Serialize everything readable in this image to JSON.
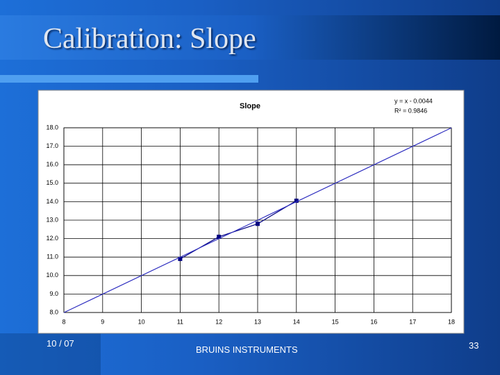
{
  "slide": {
    "title": "Calibration: Slope",
    "footer_left": "10 / 07",
    "footer_center": "BRUINS INSTRUMENTS",
    "page_number": "33"
  },
  "chart_data": {
    "type": "line",
    "title": "Slope",
    "annotations": [
      "y = x - 0.0044",
      "R² = 0.9846"
    ],
    "series": [
      {
        "x": [
          11,
          12,
          13,
          14
        ],
        "values": [
          10.9,
          12.1,
          12.8,
          14.05
        ],
        "color": "#000080",
        "marker": "square"
      },
      {
        "x": [
          8,
          18
        ],
        "values": [
          7.9956,
          17.9956
        ],
        "color": "#3030c0"
      }
    ],
    "xlim": [
      8,
      18
    ],
    "xticks": [
      8,
      9,
      10,
      11,
      12,
      13,
      14,
      15,
      16,
      17,
      18
    ],
    "ylim": [
      8,
      18
    ],
    "yticks": [
      {
        "value": 8,
        "label": "8.0"
      },
      {
        "value": 9,
        "label": "9.0"
      },
      {
        "value": 10,
        "label": "10.0"
      },
      {
        "value": 11,
        "label": "11.0"
      },
      {
        "value": 12,
        "label": "12.0"
      },
      {
        "value": 13,
        "label": "13.0"
      },
      {
        "value": 14,
        "label": "14.0"
      },
      {
        "value": 15,
        "label": "15.0"
      },
      {
        "value": 16,
        "label": "16.0"
      },
      {
        "value": 17,
        "label": "17.0"
      },
      {
        "value": 18,
        "label": "18.0"
      }
    ],
    "grid": true
  }
}
